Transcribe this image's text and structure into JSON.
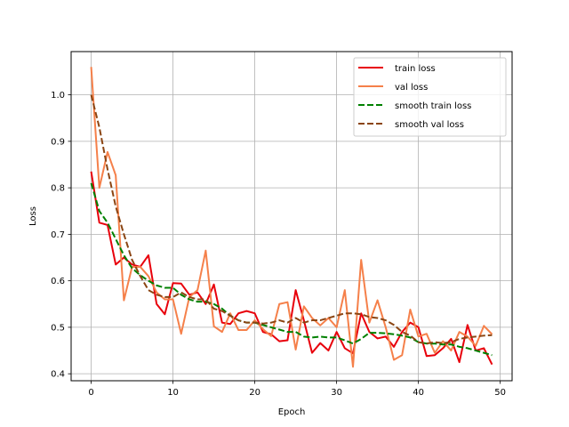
{
  "chart_data": {
    "type": "line",
    "title": "",
    "xlabel": "Epoch",
    "ylabel": "Loss",
    "xlim": [
      -2.45,
      51.45
    ],
    "ylim": [
      0.385,
      1.093
    ],
    "xticks": [
      0,
      10,
      20,
      30,
      40,
      50
    ],
    "yticks": [
      0.4,
      0.5,
      0.6,
      0.7,
      0.8,
      0.9,
      1.0
    ],
    "xtick_labels": [
      "0",
      "10",
      "20",
      "30",
      "40",
      "50"
    ],
    "ytick_labels": [
      "0.4",
      "0.5",
      "0.6",
      "0.7",
      "0.8",
      "0.9",
      "1.0"
    ],
    "grid": true,
    "legend_position": "top-right",
    "x": [
      0,
      1,
      2,
      3,
      4,
      5,
      6,
      7,
      8,
      9,
      10,
      11,
      12,
      13,
      14,
      15,
      16,
      17,
      18,
      19,
      20,
      21,
      22,
      23,
      24,
      25,
      26,
      27,
      28,
      29,
      30,
      31,
      32,
      33,
      34,
      35,
      36,
      37,
      38,
      39,
      40,
      41,
      42,
      43,
      44,
      45,
      46,
      47,
      48,
      49
    ],
    "series": [
      {
        "name": "train loss",
        "color": "#e8000b",
        "dash": "solid",
        "values": [
          0.835,
          0.725,
          0.72,
          0.635,
          0.65,
          0.635,
          0.63,
          0.655,
          0.55,
          0.528,
          0.595,
          0.594,
          0.57,
          0.575,
          0.55,
          0.592,
          0.51,
          0.507,
          0.53,
          0.535,
          0.53,
          0.49,
          0.485,
          0.47,
          0.472,
          0.58,
          0.515,
          0.445,
          0.466,
          0.45,
          0.49,
          0.455,
          0.444,
          0.53,
          0.49,
          0.476,
          0.48,
          0.458,
          0.49,
          0.51,
          0.5,
          0.438,
          0.44,
          0.455,
          0.475,
          0.425,
          0.505,
          0.45,
          0.455,
          0.42
        ]
      },
      {
        "name": "val loss",
        "color": "#f5804a",
        "dash": "solid",
        "values": [
          1.06,
          0.8,
          0.877,
          0.827,
          0.558,
          0.63,
          0.63,
          0.61,
          0.575,
          0.56,
          0.56,
          0.486,
          0.565,
          0.58,
          0.665,
          0.502,
          0.49,
          0.53,
          0.494,
          0.494,
          0.515,
          0.496,
          0.481,
          0.55,
          0.554,
          0.452,
          0.545,
          0.52,
          0.504,
          0.52,
          0.5,
          0.58,
          0.415,
          0.645,
          0.51,
          0.558,
          0.5,
          0.43,
          0.44,
          0.538,
          0.48,
          0.486,
          0.445,
          0.47,
          0.45,
          0.49,
          0.48,
          0.46,
          0.503,
          0.485
        ]
      },
      {
        "name": "smooth train loss",
        "color": "#008000",
        "dash": "dashed",
        "values": [
          0.81,
          0.75,
          0.725,
          0.69,
          0.655,
          0.627,
          0.612,
          0.6,
          0.59,
          0.585,
          0.585,
          0.57,
          0.56,
          0.555,
          0.555,
          0.55,
          0.54,
          0.525,
          0.515,
          0.51,
          0.51,
          0.505,
          0.5,
          0.495,
          0.49,
          0.49,
          0.48,
          0.478,
          0.48,
          0.478,
          0.478,
          0.472,
          0.465,
          0.475,
          0.488,
          0.488,
          0.487,
          0.485,
          0.482,
          0.478,
          0.468,
          0.465,
          0.465,
          0.463,
          0.463,
          0.458,
          0.455,
          0.45,
          0.445,
          0.44
        ]
      },
      {
        "name": "smooth val loss",
        "color": "#8b4513",
        "dash": "dashed",
        "values": [
          1.0,
          0.93,
          0.84,
          0.76,
          0.7,
          0.645,
          0.61,
          0.58,
          0.57,
          0.565,
          0.565,
          0.575,
          0.565,
          0.56,
          0.56,
          0.54,
          0.535,
          0.525,
          0.515,
          0.51,
          0.51,
          0.508,
          0.51,
          0.515,
          0.51,
          0.52,
          0.51,
          0.515,
          0.515,
          0.52,
          0.525,
          0.53,
          0.53,
          0.528,
          0.522,
          0.52,
          0.515,
          0.505,
          0.49,
          0.482,
          0.468,
          0.465,
          0.468,
          0.466,
          0.468,
          0.475,
          0.478,
          0.48,
          0.482,
          0.483
        ]
      }
    ]
  }
}
